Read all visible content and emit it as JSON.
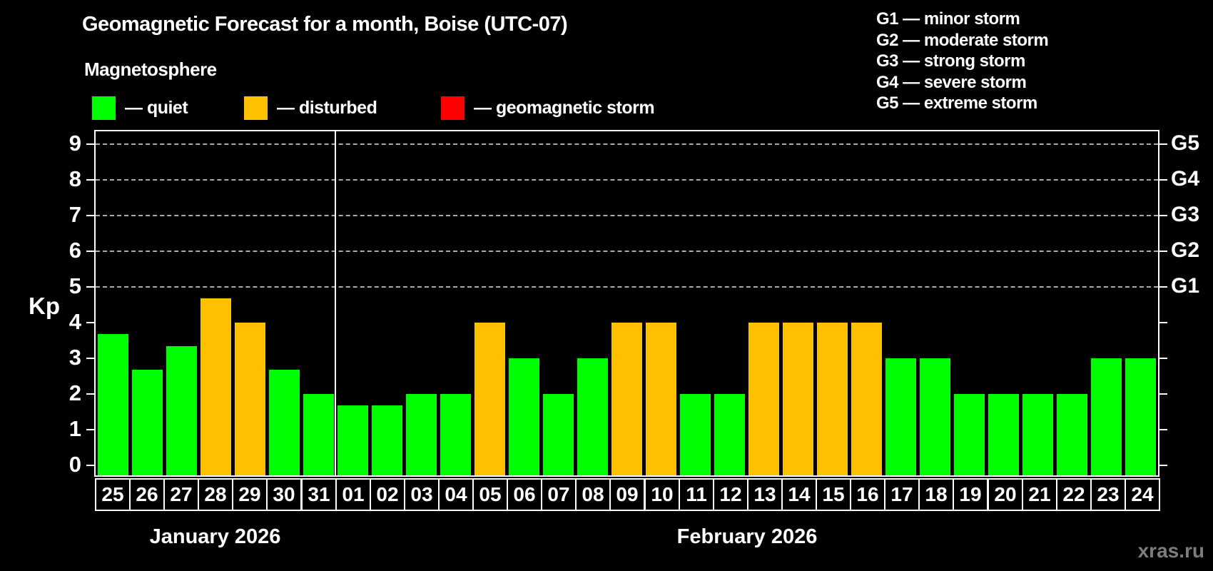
{
  "title": "Geomagnetic Forecast for a month, Boise (UTC-07)",
  "subtitle": "Magnetosphere",
  "kp_axis_label": "Kp",
  "watermark": "xras.ru",
  "legend": {
    "quiet_label": "— quiet",
    "disturbed_label": "— disturbed",
    "storm_label": "— geomagnetic storm"
  },
  "colors": {
    "quiet": "#00FF00",
    "disturbed": "#FFC000",
    "storm": "#FF0000",
    "grid": "#AAAAAA",
    "axis": "#FFFFFF",
    "background": "#000000",
    "watermark": "#7D7D7D"
  },
  "g_levels": [
    {
      "label": "G1",
      "kp": 5,
      "legend_line": "G1 — minor storm"
    },
    {
      "label": "G2",
      "kp": 6,
      "legend_line": "G2 — moderate storm"
    },
    {
      "label": "G3",
      "kp": 7,
      "legend_line": "G3 — strong storm"
    },
    {
      "label": "G4",
      "kp": 8,
      "legend_line": "G4 — severe storm"
    },
    {
      "label": "G5",
      "kp": 9,
      "legend_line": "G5 — extreme storm"
    }
  ],
  "chart_data": {
    "type": "bar",
    "title": "Geomagnetic Forecast for a month, Boise (UTC-07)",
    "xlabel": "",
    "ylabel": "Kp",
    "ylim": [
      0,
      9
    ],
    "yticks": [
      0,
      1,
      2,
      3,
      4,
      5,
      6,
      7,
      8,
      9
    ],
    "gridlines_at": [
      5,
      6,
      7,
      8,
      9
    ],
    "grid": "dashed, G-levels only",
    "legend_position": "top-left",
    "months": [
      {
        "label": "January 2026",
        "days": 7
      },
      {
        "label": "February 2026",
        "days": 24
      }
    ],
    "categories": [
      "25",
      "26",
      "27",
      "28",
      "29",
      "30",
      "31",
      "01",
      "02",
      "03",
      "04",
      "05",
      "06",
      "07",
      "08",
      "09",
      "10",
      "11",
      "12",
      "13",
      "14",
      "15",
      "16",
      "17",
      "18",
      "19",
      "20",
      "21",
      "22",
      "23",
      "24"
    ],
    "values": [
      3.67,
      2.67,
      3.33,
      4.67,
      4.0,
      2.67,
      2.0,
      1.67,
      1.67,
      2.0,
      2.0,
      4.0,
      3.0,
      2.0,
      3.0,
      4.0,
      4.0,
      2.0,
      2.0,
      4.0,
      4.0,
      4.0,
      4.0,
      3.0,
      3.0,
      2.0,
      2.0,
      2.0,
      2.0,
      3.0,
      3.0
    ],
    "status": [
      "quiet",
      "quiet",
      "quiet",
      "disturbed",
      "disturbed",
      "quiet",
      "quiet",
      "quiet",
      "quiet",
      "quiet",
      "quiet",
      "disturbed",
      "quiet",
      "quiet",
      "quiet",
      "disturbed",
      "disturbed",
      "quiet",
      "quiet",
      "disturbed",
      "disturbed",
      "disturbed",
      "disturbed",
      "quiet",
      "quiet",
      "quiet",
      "quiet",
      "quiet",
      "quiet",
      "quiet",
      "quiet"
    ]
  }
}
